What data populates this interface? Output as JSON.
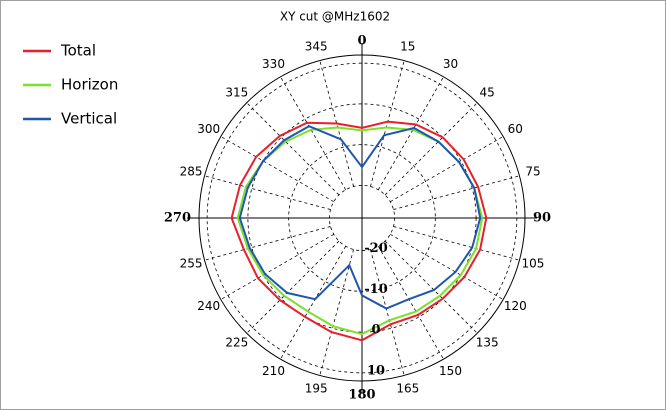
{
  "chart_data": {
    "type": "polar",
    "title": "XY cut @MHz1602",
    "theta": [
      0,
      15,
      30,
      45,
      60,
      75,
      90,
      105,
      120,
      135,
      150,
      165,
      180,
      195,
      210,
      225,
      240,
      255,
      270,
      285,
      300,
      315,
      330,
      345
    ],
    "series": [
      {
        "name": "Total",
        "color": "#e8202a",
        "values": [
          -5.9,
          -3.5,
          -1.5,
          0,
          0.8,
          1.5,
          2.5,
          2,
          1,
          0,
          -0.5,
          -1,
          2,
          1,
          0,
          0.5,
          1.5,
          2,
          4,
          3,
          2,
          0.5,
          -1,
          -4
        ]
      },
      {
        "name": "Horizon",
        "color": "#7ee02a",
        "values": [
          -6.5,
          -5,
          -3,
          -1.5,
          -0.5,
          0.5,
          1.5,
          1,
          0,
          -1,
          -1.5,
          -2,
          0.5,
          -0.5,
          -1.5,
          -1,
          0,
          1,
          2.5,
          1.5,
          0,
          -1.5,
          -3,
          -5
        ]
      },
      {
        "name": "Vertical",
        "color": "#1f56b0",
        "values": [
          -15.5,
          -7,
          -2.5,
          -1.5,
          -0.5,
          0.5,
          1,
          0,
          -1.5,
          -3,
          -5,
          -5,
          -9,
          -16,
          -5,
          -2,
          -0.5,
          0.5,
          2,
          1,
          0,
          -1,
          -2,
          -8
        ]
      }
    ],
    "rlim": [
      -28,
      12
    ],
    "rticks": [
      -20,
      -10,
      0,
      10
    ],
    "thetaticks": [
      0,
      15,
      30,
      45,
      60,
      75,
      90,
      105,
      120,
      135,
      150,
      165,
      180,
      195,
      210,
      225,
      240,
      255,
      270,
      285,
      300,
      315,
      330,
      345
    ],
    "grid": true,
    "legend": "upper left"
  }
}
